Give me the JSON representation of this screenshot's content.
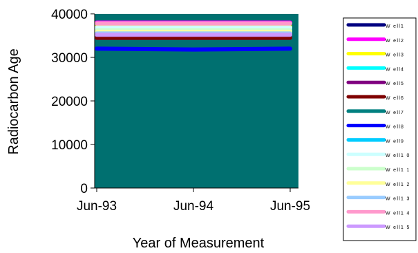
{
  "chart_data": {
    "type": "line",
    "title": "",
    "xlabel": "Year of Measurement",
    "ylabel": "Radiocarbon Age",
    "x": [
      "Jun-93",
      "Jun-94",
      "Jun-95"
    ],
    "ylim": [
      0,
      40000
    ],
    "yticks": [
      "0",
      "10000",
      "20000",
      "30000",
      "40000"
    ],
    "grid": false,
    "legend_position": "right",
    "series": [
      {
        "name": "W ell1",
        "color": "#000080",
        "values": [
          38000,
          38000,
          38000
        ]
      },
      {
        "name": "W ell2",
        "color": "#ff00ff",
        "values": [
          38000,
          38000,
          38000
        ]
      },
      {
        "name": "W ell3",
        "color": "#ffff00",
        "values": [
          37000,
          37000,
          37000
        ]
      },
      {
        "name": "W ell4",
        "color": "#00ffff",
        "values": [
          36500,
          36500,
          36500
        ]
      },
      {
        "name": "W ell5",
        "color": "#800080",
        "values": [
          34500,
          34500,
          34500
        ]
      },
      {
        "name": "W ell6",
        "color": "#800000",
        "values": [
          34500,
          34500,
          34500
        ]
      },
      {
        "name": "W ell7",
        "color": "#008080",
        "values": [
          40000,
          40000,
          40000
        ]
      },
      {
        "name": "W ell8",
        "color": "#0000ff",
        "values": [
          32000,
          31800,
          32000
        ]
      },
      {
        "name": "W ell9",
        "color": "#00ccff",
        "values": [
          36000,
          36000,
          36000
        ]
      },
      {
        "name": "W ell1 0",
        "color": "#ccffff",
        "values": [
          36800,
          36800,
          36800
        ]
      },
      {
        "name": "W ell1 1",
        "color": "#ccffcc",
        "values": [
          36200,
          36200,
          36200
        ]
      },
      {
        "name": "W ell1 2",
        "color": "#ffff99",
        "values": [
          35800,
          35800,
          35800
        ]
      },
      {
        "name": "W ell1 3",
        "color": "#99ccff",
        "values": [
          35500,
          35500,
          35500
        ]
      },
      {
        "name": "W ell1 4",
        "color": "#ff99cc",
        "values": [
          37800,
          37800,
          37800
        ]
      },
      {
        "name": "W ell1 5",
        "color": "#cc99ff",
        "values": [
          35200,
          35200,
          35200
        ]
      }
    ]
  }
}
